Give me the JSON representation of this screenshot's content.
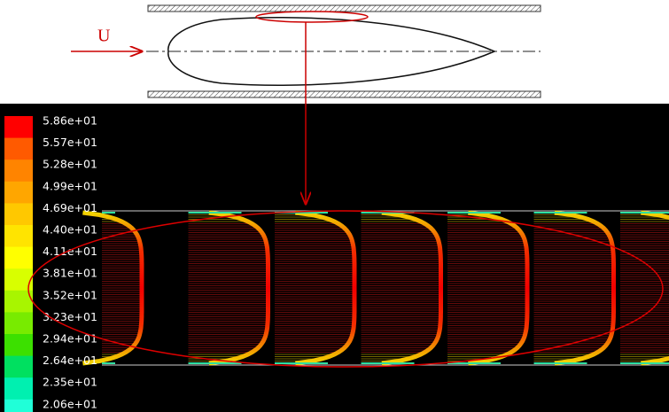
{
  "diagram": {
    "inlet_label": "U"
  },
  "colorbar": {
    "labels": [
      "5.86e+01",
      "5.57e+01",
      "5.28e+01",
      "4.99e+01",
      "4.69e+01",
      "4.40e+01",
      "4.11e+01",
      "3.81e+01",
      "3.52e+01",
      "3.23e+01",
      "2.94e+01",
      "2.64e+01",
      "2.35e+01",
      "2.06e+01"
    ],
    "colors": [
      "#ff0000",
      "#ff5a00",
      "#ff8400",
      "#ffa600",
      "#ffc800",
      "#ffe400",
      "#ffff00",
      "#d8ff00",
      "#a8f500",
      "#78eb00",
      "#3ce000",
      "#00e060",
      "#00f0b0",
      "#20ffd8"
    ]
  }
}
